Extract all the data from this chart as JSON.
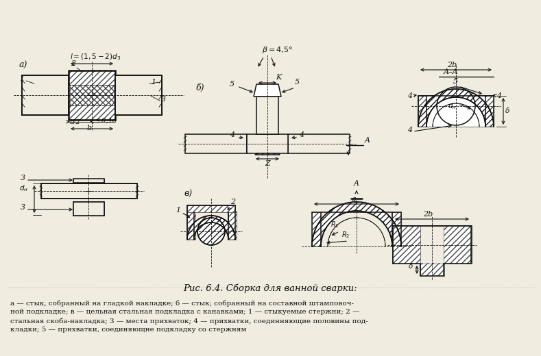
{
  "title": "Рис. 6.4. Сборка для ванной сварки:",
  "caption_line1": "а — стык, собранный на гладкой накладке; б — стык; собранный на составной штамповоч-",
  "caption_line2": "ной подкладке; в — цельная стальная подкладка с канавками; 1 — стыкуемые стержни; 2 —",
  "caption_line3": "стальная скоба-накладка; 3 — места прихваток; 4 — прихватки, соединняющие половины под-",
  "caption_line4": "кладки; 5 — прнхватки, соединяющне подкладку со стержням",
  "bg_color": "#f0ece0",
  "line_color": "#111111"
}
